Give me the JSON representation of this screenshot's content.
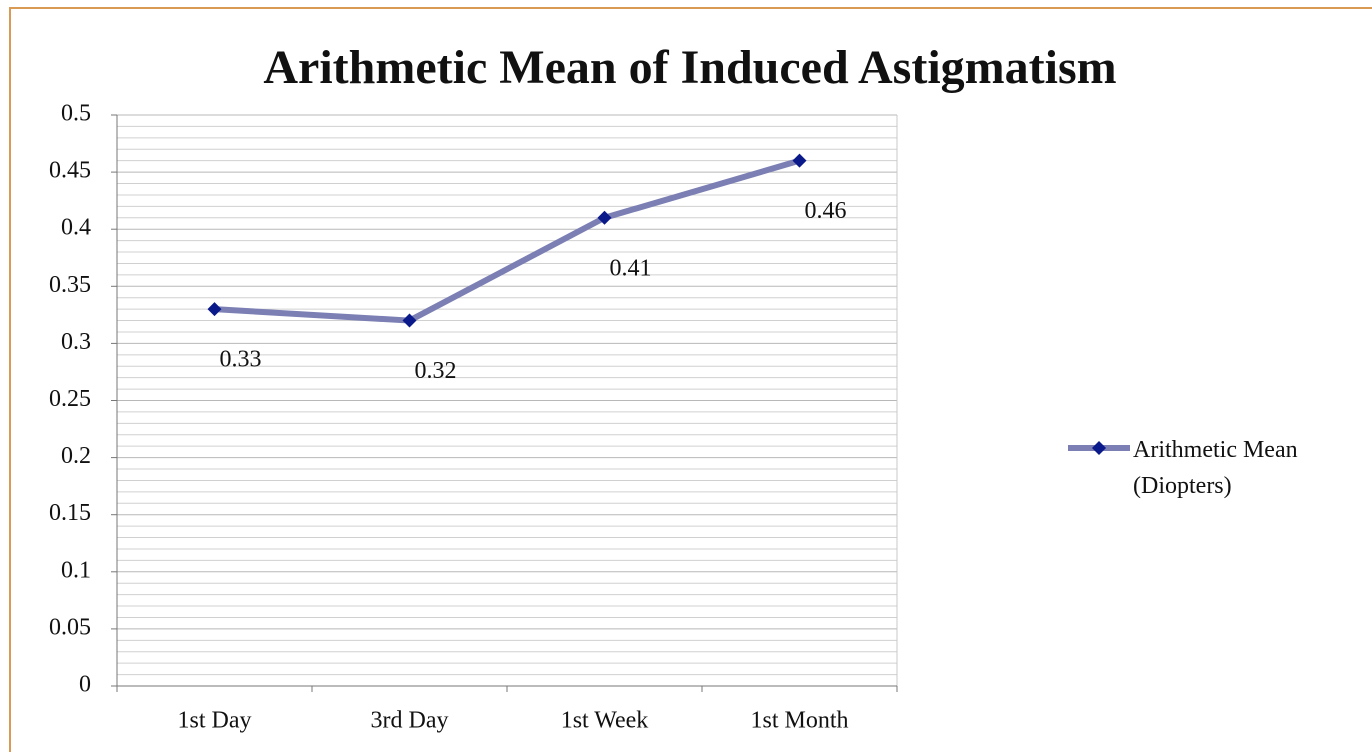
{
  "chart_data": {
    "type": "line",
    "title": "Arithmetic Mean of Induced Astigmatism",
    "categories": [
      "1st Day",
      "3rd Day",
      "1st Week",
      "1st Month"
    ],
    "series": [
      {
        "name": "Arithmetic Mean (Diopters)",
        "color": "#7b7fb3",
        "marker_color": "#0b1a8a",
        "values": [
          0.33,
          0.32,
          0.41,
          0.46
        ]
      }
    ],
    "ylim": [
      0,
      0.5
    ],
    "yticks": [
      0,
      0.05,
      0.1,
      0.15,
      0.2,
      0.25,
      0.3,
      0.35,
      0.4,
      0.45,
      0.5
    ],
    "grid": true,
    "minor_grid": true,
    "legend": "right"
  }
}
